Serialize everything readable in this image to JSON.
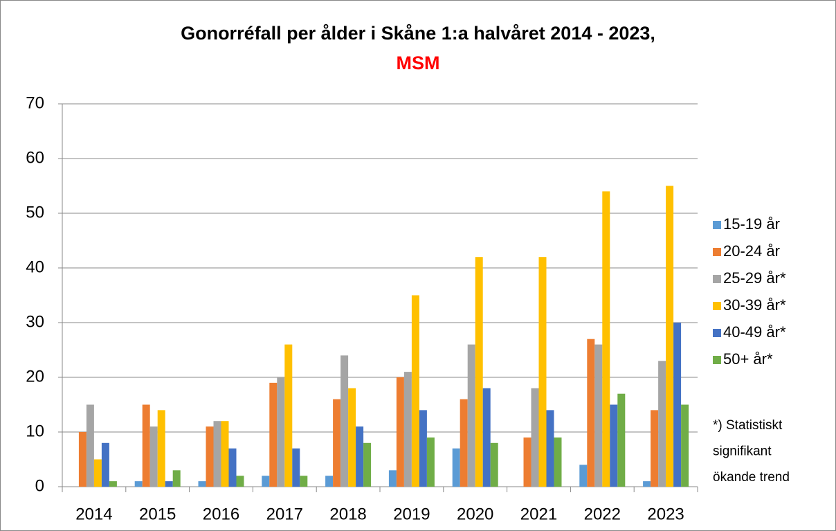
{
  "chart_data": {
    "type": "bar",
    "title": "Gonorréfall per ålder i Skåne 1:a halvåret 2014 - 2023,",
    "subtitle": "MSM",
    "categories": [
      "2014",
      "2015",
      "2016",
      "2017",
      "2018",
      "2019",
      "2020",
      "2021",
      "2022",
      "2023"
    ],
    "series": [
      {
        "name": "15-19 år",
        "color": "#5b9bd5",
        "values": [
          0,
          1,
          1,
          2,
          2,
          3,
          7,
          0,
          4,
          1
        ]
      },
      {
        "name": "20-24 år",
        "color": "#ed7d31",
        "values": [
          10,
          15,
          11,
          19,
          16,
          20,
          16,
          9,
          27,
          14
        ]
      },
      {
        "name": "25-29 år*",
        "color": "#a5a5a5",
        "values": [
          15,
          11,
          12,
          20,
          24,
          21,
          26,
          18,
          26,
          23
        ]
      },
      {
        "name": "30-39 år*",
        "color": "#ffc000",
        "values": [
          5,
          14,
          12,
          26,
          18,
          35,
          42,
          42,
          54,
          55
        ]
      },
      {
        "name": "40-49 år*",
        "color": "#4472c4",
        "values": [
          8,
          1,
          7,
          7,
          11,
          14,
          18,
          14,
          15,
          30
        ]
      },
      {
        "name": "50+ år*",
        "color": "#70ad47",
        "values": [
          1,
          3,
          2,
          2,
          8,
          9,
          8,
          9,
          17,
          15
        ]
      }
    ],
    "annotation": [
      "*) Statistiskt",
      "signifikant",
      "ökande trend"
    ],
    "ylim": [
      0,
      70
    ],
    "yticks": [
      0,
      10,
      20,
      30,
      40,
      50,
      60,
      70
    ],
    "grid": true,
    "legend": "right"
  }
}
